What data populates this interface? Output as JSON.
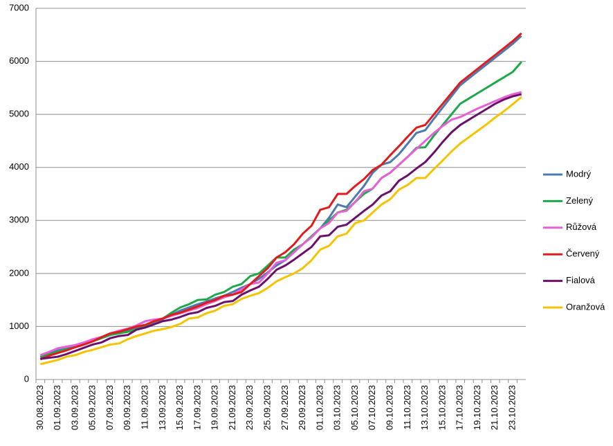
{
  "chart_data": {
    "type": "line",
    "categories": [
      "30.08.2023",
      null,
      "01.09.2023",
      null,
      "03.09.2023",
      null,
      "05.09.2023",
      null,
      "07.09.2023",
      null,
      "09.09.2023",
      null,
      "11.09.2023",
      null,
      "13.09.2023",
      null,
      "15.09.2023",
      null,
      "17.09.2023",
      null,
      "19.09.2023",
      null,
      "21.09.2023",
      null,
      "23.09.2023",
      null,
      "25.09.2023",
      null,
      "27.09.2023",
      null,
      "29.09.2023",
      null,
      "01.10.2023",
      null,
      "03.10.2023",
      null,
      "05.10.2023",
      null,
      "07.10.2023",
      null,
      "09.10.2023",
      null,
      "11.10.2023",
      null,
      "13.10.2023",
      null,
      "15.10.2023",
      null,
      "17.10.2023",
      null,
      "19.10.2023",
      null,
      "21.10.2023",
      null,
      "23.10.2023",
      null
    ],
    "series": [
      {
        "name": "Modrý",
        "color": "#4a7ab0",
        "values": [
          420,
          490,
          550,
          580,
          620,
          680,
          730,
          780,
          840,
          880,
          920,
          960,
          1000,
          1080,
          1140,
          1220,
          1300,
          1360,
          1420,
          1470,
          1530,
          1580,
          1650,
          1730,
          1800,
          1900,
          2020,
          2150,
          2250,
          2400,
          2550,
          2700,
          2850,
          3050,
          3300,
          3250,
          3450,
          3650,
          3900,
          4050,
          4100,
          4250,
          4450,
          4650,
          4700,
          4920,
          5130,
          5340,
          5550,
          5680,
          5810,
          5940,
          6070,
          6200,
          6330,
          6480
        ]
      },
      {
        "name": "Zelený",
        "color": "#1ea84a",
        "values": [
          430,
          480,
          530,
          570,
          610,
          660,
          720,
          780,
          840,
          870,
          900,
          950,
          1000,
          1100,
          1150,
          1260,
          1360,
          1420,
          1500,
          1510,
          1600,
          1650,
          1750,
          1800,
          1950,
          2000,
          2150,
          2300,
          2300,
          2450,
          2550,
          2700,
          2850,
          3000,
          3150,
          3200,
          3350,
          3500,
          3600,
          3800,
          3900,
          4050,
          4200,
          4370,
          4380,
          4600,
          4800,
          5000,
          5200,
          5300,
          5400,
          5500,
          5600,
          5700,
          5800,
          5990
        ]
      },
      {
        "name": "Růžová",
        "color": "#e860d8",
        "values": [
          460,
          520,
          590,
          620,
          650,
          700,
          760,
          800,
          870,
          920,
          960,
          1020,
          1100,
          1130,
          1150,
          1200,
          1250,
          1300,
          1350,
          1420,
          1480,
          1550,
          1600,
          1700,
          1800,
          1830,
          2000,
          2200,
          2250,
          2400,
          2550,
          2680,
          2850,
          2950,
          3150,
          3180,
          3350,
          3550,
          3600,
          3800,
          3900,
          4050,
          4200,
          4350,
          4500,
          4650,
          4780,
          4900,
          4950,
          5030,
          5110,
          5180,
          5250,
          5320,
          5380,
          5420
        ]
      },
      {
        "name": "Červený",
        "color": "#e31a1c",
        "values": [
          380,
          450,
          500,
          550,
          610,
          660,
          720,
          800,
          870,
          900,
          950,
          1000,
          1030,
          1100,
          1150,
          1220,
          1260,
          1320,
          1380,
          1450,
          1500,
          1580,
          1600,
          1650,
          1800,
          1950,
          2100,
          2300,
          2400,
          2550,
          2750,
          2900,
          3200,
          3250,
          3500,
          3500,
          3650,
          3780,
          3950,
          4050,
          4230,
          4400,
          4580,
          4750,
          4800,
          5000,
          5200,
          5400,
          5600,
          5730,
          5860,
          5990,
          6120,
          6250,
          6380,
          6530
        ]
      },
      {
        "name": "Fialová",
        "color": "#6a0f6a",
        "values": [
          390,
          410,
          430,
          480,
          540,
          600,
          660,
          700,
          780,
          820,
          840,
          940,
          980,
          1040,
          1100,
          1130,
          1180,
          1240,
          1270,
          1350,
          1390,
          1460,
          1480,
          1600,
          1680,
          1750,
          1900,
          2070,
          2150,
          2260,
          2380,
          2500,
          2700,
          2720,
          2880,
          2920,
          3050,
          3180,
          3300,
          3470,
          3550,
          3750,
          3850,
          3980,
          4100,
          4280,
          4480,
          4660,
          4800,
          4900,
          5000,
          5100,
          5200,
          5280,
          5340,
          5380
        ]
      },
      {
        "name": "Oranžová",
        "color": "#f5c400",
        "values": [
          290,
          330,
          370,
          430,
          460,
          520,
          560,
          610,
          660,
          680,
          760,
          820,
          870,
          920,
          950,
          990,
          1050,
          1150,
          1170,
          1250,
          1300,
          1390,
          1420,
          1520,
          1580,
          1630,
          1730,
          1850,
          1930,
          2000,
          2100,
          2250,
          2450,
          2520,
          2700,
          2750,
          2950,
          3000,
          3150,
          3300,
          3400,
          3580,
          3670,
          3800,
          3800,
          3970,
          4130,
          4300,
          4450,
          4570,
          4690,
          4810,
          4940,
          5060,
          5190,
          5330
        ]
      }
    ],
    "ylim": [
      0,
      7000
    ],
    "yticks": [
      0,
      1000,
      2000,
      3000,
      4000,
      5000,
      6000,
      7000
    ],
    "grid": true,
    "legend": "right"
  }
}
